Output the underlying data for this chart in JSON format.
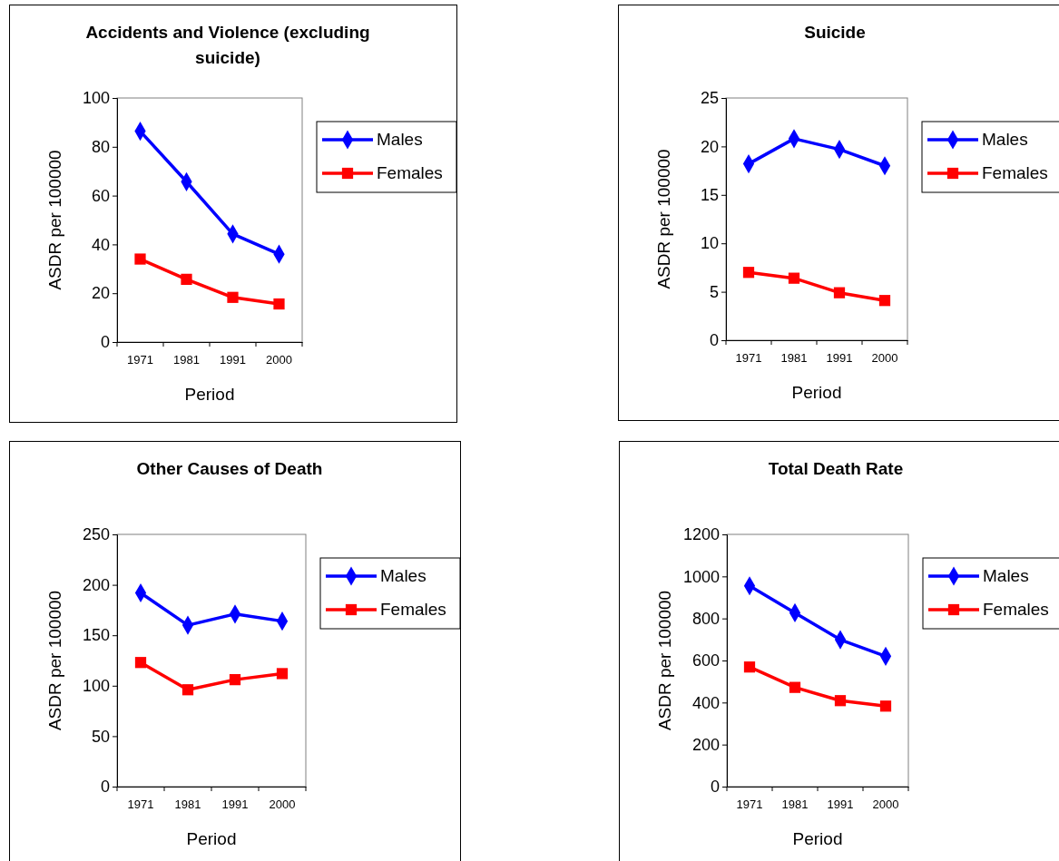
{
  "chart_data": [
    {
      "type": "line",
      "title": "Accidents and Violence (excluding suicide)",
      "xlabel": "Period",
      "ylabel": "ASDR per 100000",
      "categories": [
        "1971",
        "1981",
        "1991",
        "2000"
      ],
      "ylim": [
        0,
        100
      ],
      "yticks": [
        0,
        20,
        40,
        60,
        80,
        100
      ],
      "legend": "right",
      "grid": false,
      "series": [
        {
          "name": "Males",
          "color": "#0000ff",
          "marker": "diamond",
          "values": [
            86.4,
            65.7,
            44.3,
            36
          ]
        },
        {
          "name": "Females",
          "color": "#ff0000",
          "marker": "square",
          "values": [
            34,
            25.7,
            18.3,
            15.6
          ]
        }
      ]
    },
    {
      "type": "line",
      "title": "Suicide",
      "xlabel": "Period",
      "ylabel": "ASDR per 100000",
      "categories": [
        "1971",
        "1981",
        "1991",
        "2000"
      ],
      "ylim": [
        0,
        25
      ],
      "yticks": [
        0,
        5,
        10,
        15,
        20,
        25
      ],
      "legend": "right",
      "grid": false,
      "series": [
        {
          "name": "Males",
          "color": "#0000ff",
          "marker": "diamond",
          "values": [
            18.2,
            20.8,
            19.7,
            18.0
          ]
        },
        {
          "name": "Females",
          "color": "#ff0000",
          "marker": "square",
          "values": [
            7.0,
            6.4,
            4.9,
            4.1
          ]
        }
      ]
    },
    {
      "type": "line",
      "title": "Other Causes of Death",
      "xlabel": "Period",
      "ylabel": "ASDR per 100000",
      "categories": [
        "1971",
        "1981",
        "1991",
        "2000"
      ],
      "ylim": [
        0,
        250
      ],
      "yticks": [
        0,
        50,
        100,
        150,
        200,
        250
      ],
      "legend": "right",
      "grid": false,
      "series": [
        {
          "name": "Males",
          "color": "#0000ff",
          "marker": "diamond",
          "values": [
            192,
            160,
            171,
            164
          ]
        },
        {
          "name": "Females",
          "color": "#ff0000",
          "marker": "square",
          "values": [
            123,
            96,
            106,
            112
          ]
        }
      ]
    },
    {
      "type": "line",
      "title": "Total Death Rate",
      "xlabel": "Period",
      "ylabel": "ASDR per 100000",
      "categories": [
        "1971",
        "1981",
        "1991",
        "2000"
      ],
      "ylim": [
        0,
        1200
      ],
      "yticks": [
        0,
        200,
        400,
        600,
        800,
        1000,
        1200
      ],
      "legend": "right",
      "grid": false,
      "series": [
        {
          "name": "Males",
          "color": "#0000ff",
          "marker": "diamond",
          "values": [
            955,
            827,
            699,
            620
          ]
        },
        {
          "name": "Females",
          "color": "#ff0000",
          "marker": "square",
          "values": [
            569,
            472,
            409,
            383
          ]
        }
      ]
    }
  ]
}
